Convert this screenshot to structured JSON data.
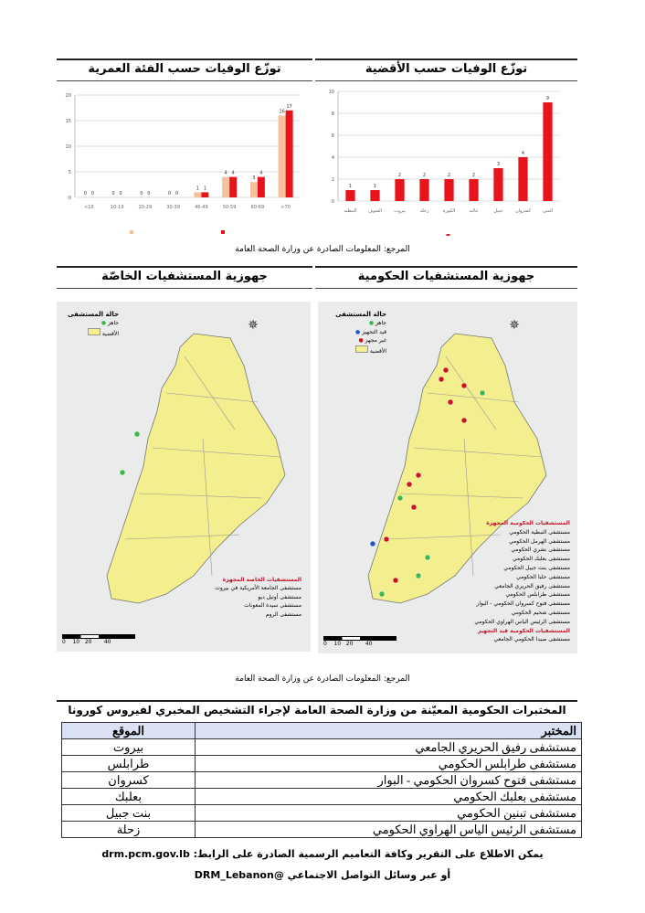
{
  "charts_section": {
    "left_title": "توزّع الوفيات حسب الفئة العمرية",
    "right_title": "توزّع الوفيات حسب الأقضية",
    "source": "المرجع: المعلومات الصادرة عن وزارة الصحة العامة"
  },
  "chart_data": [
    {
      "type": "bar",
      "title": "توزّع الوفيات حسب الفئة العمرية",
      "categories": [
        "<10",
        "10-19",
        "20-29",
        "30-39",
        "40-49",
        "50-59",
        "60-69",
        ">70"
      ],
      "series": [
        {
          "values": [
            0,
            0,
            0,
            0,
            1,
            4,
            3,
            16
          ],
          "color": "#f6c29c"
        },
        {
          "values": [
            0,
            0,
            0,
            0,
            1,
            4,
            4,
            17
          ],
          "color": "#e8141b"
        }
      ],
      "ylim": [
        0,
        20
      ],
      "yticks": [
        0,
        5,
        10,
        15,
        20
      ],
      "grid": true,
      "legend": "bottom"
    },
    {
      "type": "bar",
      "title": "توزّع الوفيات حسب الأقضية",
      "categories": [
        "النبطية",
        "الشوف",
        "بيروت",
        "زحلة",
        "الكورة",
        "عاليه",
        "جبيل",
        "كسروان",
        "المتن"
      ],
      "values": [
        1,
        1,
        2,
        2,
        2,
        2,
        3,
        4,
        9
      ],
      "color": "#e8141b",
      "ylim": [
        0,
        10
      ],
      "yticks": [
        0,
        2,
        4,
        6,
        8,
        10
      ],
      "grid": true,
      "legend": "bottom"
    }
  ],
  "maps_section": {
    "left_title": "جهوزية المستشفيات الخاصّة",
    "right_title": "جهوزية المستشفيات الحكومية",
    "source": "المرجع: المعلومات الصادرة عن وزارة الصحة العامة",
    "left_map": {
      "legend_title": "حالة المستشفى",
      "legend_items": [
        "جاهز",
        "الأقضية"
      ],
      "list_heading": "المستشفيات الخاصة المجهزة",
      "list": [
        "مستشفى الجامعة الأمريكية في بيروت",
        "مستشفى أوتيل ديو",
        "مستشفى سيدة المعونات",
        "مستشفى الروم"
      ],
      "scale": [
        "0",
        "10",
        "20",
        "40"
      ]
    },
    "right_map": {
      "legend_title": "حالة المستشفى",
      "legend_items": [
        "جاهز",
        "قيد التجهيز",
        "غير مجهز",
        "الأقضية"
      ],
      "list_heading": "المستشفيات الحكومية المجهزة",
      "list": [
        "مستشفى النبطية الحكومي",
        "مستشفى الهرمل الحكومي",
        "مستشفى نشري الحكومي",
        "مستشفى بعلبك الحكومي",
        "مستشفى بنت جبيل الحكومي",
        "مستشفى حلبا الحكومي",
        "مستشفى رفيق الحريري الجامعي",
        "مستشفى طرابلس الحكومي",
        "مستشفى فتوح كسروان الحكومي - البوار",
        "مستشفى شحيم الحكومي",
        "مستشفى الرئيس الياس الهراوي الحكومي"
      ],
      "list_heading2": "المستشفيات الحكومية قيد التجهيز",
      "list2": [
        "مستشفى صيدا الحكومي الجامعي"
      ],
      "scale": [
        "0",
        "10",
        "20",
        "40"
      ]
    },
    "colors": {
      "ready": "#3fb54a",
      "in_progress": "#2456c8",
      "not_ready": "#c8161d",
      "district": "#f3ee8e"
    }
  },
  "table": {
    "title": "المختبرات الحكومية المعيّنة من وزارة الصحة العامة لإجراء التشخيص المخبري لفيروس كورونا",
    "headers": {
      "lab": "المختبر",
      "location": "الموقع"
    },
    "rows": [
      {
        "lab": "مستشفى رفيق الحريري الجامعي",
        "location": "بيروت"
      },
      {
        "lab": "مستشفى طرابلس الحكومي",
        "location": "طرابلس"
      },
      {
        "lab": "مستشفى فتوح كسروان الحكومي - البوار",
        "location": "كسروان"
      },
      {
        "lab": "مستشفى بعلبك الحكومي",
        "location": "بعلبك"
      },
      {
        "lab": "مستشفى تبنين الحكومي",
        "location": "بنت جبيل"
      },
      {
        "lab": "مستشفى الرئيس الياس الهراوي الحكومي",
        "location": "زحلة"
      }
    ]
  },
  "footer": {
    "line1": "يمكن الاطلاع على التقرير وكافة التعاميم الرسمية الصادرة على الرابط: drm.pcm.gov.lb",
    "line2": "أو عبر وسائل التواصل الاجتماعي @DRM_Lebanon"
  }
}
